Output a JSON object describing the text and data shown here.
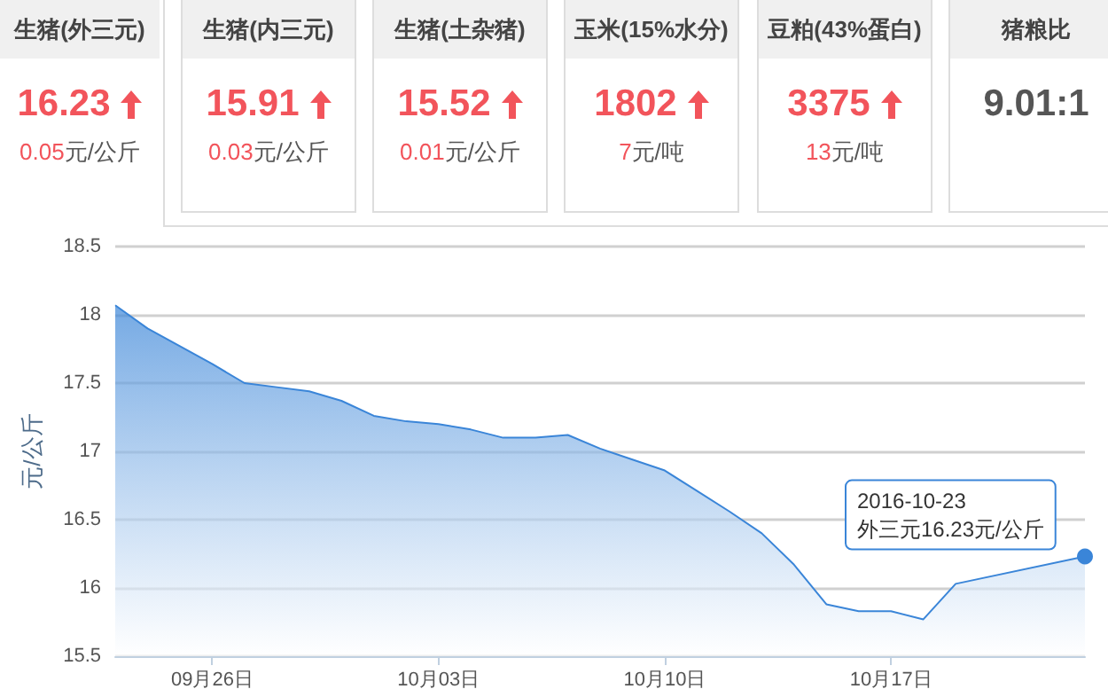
{
  "chart_data": [
    {
      "type": "other",
      "title": "生猪(外三元)",
      "annotations": [
        "16.23",
        "0.05元/公斤"
      ]
    },
    {
      "type": "other",
      "title": "生猪(内三元)",
      "annotations": [
        "15.91",
        "0.03元/公斤"
      ]
    },
    {
      "type": "other",
      "title": "生猪(土杂猪)",
      "annotations": [
        "15.52",
        "0.01元/公斤"
      ]
    },
    {
      "type": "other",
      "title": "玉米(15%水分)",
      "annotations": [
        "1802",
        "7元/吨"
      ]
    },
    {
      "type": "other",
      "title": "豆粕(43%蛋白)",
      "annotations": [
        "3375",
        "13元/吨"
      ]
    },
    {
      "type": "other",
      "title": "猪粮比",
      "annotations": [
        "9.01:1"
      ]
    },
    {
      "type": "area",
      "ylabel": "元/公斤",
      "color": "#3a85d8",
      "grid": "y",
      "marker": "none",
      "x": [
        "2016-09-23",
        "2016-09-24",
        "2016-09-25",
        "2016-09-26",
        "2016-09-27",
        "2016-09-28",
        "2016-09-29",
        "2016-09-30",
        "2016-10-01",
        "2016-10-02",
        "2016-10-03",
        "2016-10-04",
        "2016-10-05",
        "2016-10-06",
        "2016-10-07",
        "2016-10-08",
        "2016-10-09",
        "2016-10-10",
        "2016-10-11",
        "2016-10-12",
        "2016-10-13",
        "2016-10-14",
        "2016-10-15",
        "2016-10-16",
        "2016-10-17",
        "2016-10-18",
        "2016-10-19",
        "2016-10-20",
        "2016-10-21",
        "2016-10-22",
        "2016-10-23"
      ],
      "values": [
        18.07,
        17.9,
        17.77,
        17.64,
        17.5,
        17.47,
        17.44,
        17.37,
        17.26,
        17.22,
        17.2,
        17.16,
        17.1,
        17.1,
        17.12,
        17.02,
        16.94,
        16.86,
        16.71,
        16.56,
        16.4,
        16.17,
        15.88,
        15.83,
        15.83,
        15.77,
        16.03,
        null,
        null,
        null,
        16.23
      ],
      "xlim": [
        "2016-09-23",
        "2016-10-23"
      ],
      "xticks": [
        {
          "value": "2016-09-26",
          "label": "09月26日"
        },
        {
          "value": "2016-10-03",
          "label": "10月03日"
        },
        {
          "value": "2016-10-10",
          "label": "10月10日"
        },
        {
          "value": "2016-10-17",
          "label": "10月17日"
        }
      ],
      "ylim": [
        15.5,
        18.5
      ],
      "yticks": [
        15.5,
        16,
        16.5,
        17,
        17.5,
        18,
        18.5
      ],
      "annotations": [
        {
          "text": "2016-10-23\n外三元16.23元/公斤",
          "x": "2016-10-23",
          "y": 16.23
        }
      ]
    }
  ]
}
